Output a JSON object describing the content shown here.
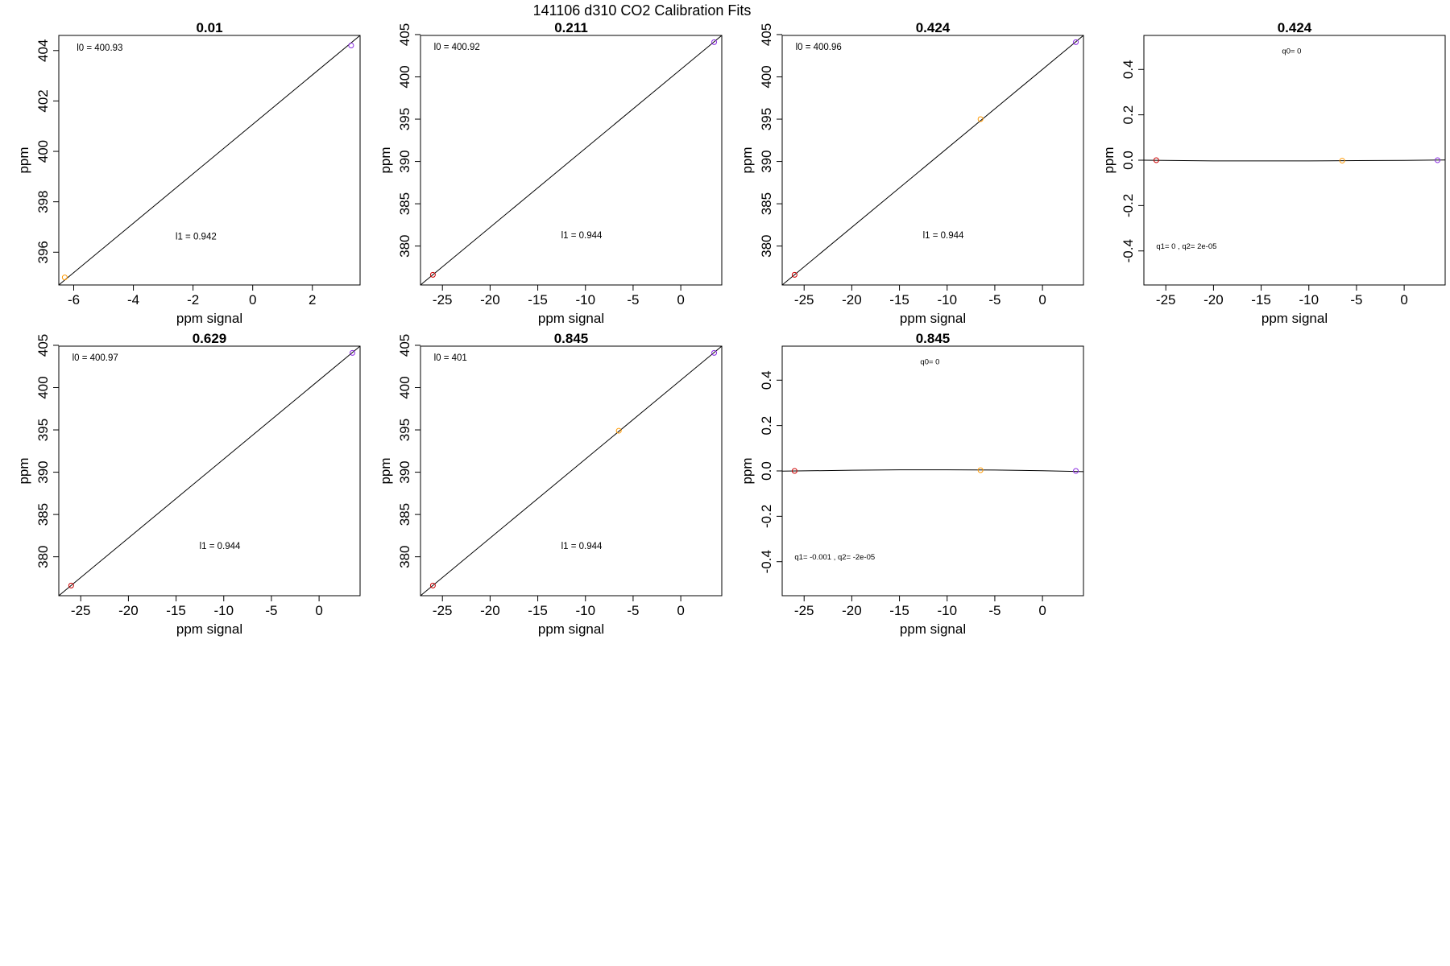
{
  "main_title": "141106   d310   CO2 Calibration Fits",
  "chart_data": [
    {
      "type": "scatter",
      "title": "0.01",
      "xlabel": "ppm signal",
      "ylabel": "ppm",
      "xlim": [
        -6.5,
        3.6
      ],
      "ylim": [
        394.7,
        404.6
      ],
      "xticks": [
        -6,
        -4,
        -2,
        0,
        2
      ],
      "yticks": [
        396,
        398,
        400,
        402,
        404
      ],
      "fit": {
        "type": "linear",
        "x": [
          -6.5,
          3.6
        ],
        "y": [
          394.7,
          404.6
        ]
      },
      "points": [
        {
          "x": -6.3,
          "y": 395.0,
          "color": "#ff9900"
        },
        {
          "x": 3.3,
          "y": 404.2,
          "color": "#8a2be2"
        }
      ],
      "annotations": [
        {
          "text": "l0 =  400.93",
          "x": -5.9,
          "y": 404.0,
          "anchor": "start",
          "size": "normal"
        },
        {
          "text": "l1 =  0.942",
          "x": -1.9,
          "y": 396.5,
          "anchor": "middle",
          "size": "normal"
        }
      ],
      "grid": false
    },
    {
      "type": "scatter",
      "title": "0.211",
      "xlabel": "ppm signal",
      "ylabel": "ppm",
      "xlim": [
        -27.3,
        4.3
      ],
      "ylim": [
        375.4,
        404.9
      ],
      "xticks": [
        -25,
        -20,
        -15,
        -10,
        -5,
        0
      ],
      "yticks": [
        380,
        385,
        390,
        395,
        400,
        405
      ],
      "fit": {
        "type": "linear",
        "x": [
          -27.3,
          4.3
        ],
        "y": [
          375.4,
          404.9
        ]
      },
      "points": [
        {
          "x": -26.0,
          "y": 376.6,
          "color": "#cc0000"
        },
        {
          "x": 3.5,
          "y": 404.1,
          "color": "#8a2be2"
        }
      ],
      "annotations": [
        {
          "text": "l0 =  400.92",
          "x": -25.9,
          "y": 403.2,
          "anchor": "start",
          "size": "normal"
        },
        {
          "text": "l1 =  0.944",
          "x": -10.4,
          "y": 380.9,
          "anchor": "middle",
          "size": "normal"
        }
      ],
      "grid": false
    },
    {
      "type": "scatter",
      "title": "0.424",
      "xlabel": "ppm signal",
      "ylabel": "ppm",
      "xlim": [
        -27.3,
        4.3
      ],
      "ylim": [
        375.4,
        404.9
      ],
      "xticks": [
        -25,
        -20,
        -15,
        -10,
        -5,
        0
      ],
      "yticks": [
        380,
        385,
        390,
        395,
        400,
        405
      ],
      "fit": {
        "type": "linear",
        "x": [
          -27.3,
          4.3
        ],
        "y": [
          375.4,
          404.9
        ]
      },
      "points": [
        {
          "x": -26.0,
          "y": 376.6,
          "color": "#cc0000"
        },
        {
          "x": -6.5,
          "y": 395.0,
          "color": "#ff9900"
        },
        {
          "x": 3.5,
          "y": 404.1,
          "color": "#8a2be2"
        }
      ],
      "annotations": [
        {
          "text": "l0 =  400.96",
          "x": -25.9,
          "y": 403.2,
          "anchor": "start",
          "size": "normal"
        },
        {
          "text": "l1 =  0.944",
          "x": -10.4,
          "y": 380.9,
          "anchor": "middle",
          "size": "normal"
        }
      ],
      "grid": false
    },
    {
      "type": "scatter",
      "title": "0.424",
      "xlabel": "ppm signal",
      "ylabel": "ppm",
      "xlim": [
        -27.3,
        4.3
      ],
      "ylim": [
        -0.55,
        0.55
      ],
      "xticks": [
        -25,
        -20,
        -15,
        -10,
        -5,
        0
      ],
      "yticks": [
        -0.4,
        -0.2,
        0.0,
        0.2,
        0.4
      ],
      "ytick_labels": [
        "-0.4",
        "-0.2",
        "0.0",
        "0.2",
        "0.4"
      ],
      "fit": {
        "type": "curve",
        "x": [
          -27.3,
          -20,
          -15,
          -10,
          -5,
          0,
          4.3
        ],
        "y": [
          0.0,
          -0.003,
          -0.003,
          -0.003,
          -0.002,
          -0.001,
          0.001
        ]
      },
      "points": [
        {
          "x": -26.0,
          "y": 0.0,
          "color": "#cc0000"
        },
        {
          "x": -6.5,
          "y": -0.002,
          "color": "#ff9900"
        },
        {
          "x": 3.5,
          "y": 0.0,
          "color": "#8a2be2"
        }
      ],
      "annotations": [
        {
          "text": "q0= 0",
          "x": -11.8,
          "y": 0.47,
          "anchor": "middle",
          "size": "small"
        },
        {
          "text": "q1= 0  ,  q2= 2e-05",
          "x": -26.0,
          "y": -0.39,
          "anchor": "start",
          "size": "small"
        }
      ],
      "grid": false
    },
    {
      "type": "scatter",
      "title": "0.629",
      "xlabel": "ppm signal",
      "ylabel": "ppm",
      "xlim": [
        -27.3,
        4.3
      ],
      "ylim": [
        375.4,
        404.9
      ],
      "xticks": [
        -25,
        -20,
        -15,
        -10,
        -5,
        0
      ],
      "yticks": [
        380,
        385,
        390,
        395,
        400,
        405
      ],
      "fit": {
        "type": "linear",
        "x": [
          -27.3,
          4.3
        ],
        "y": [
          375.4,
          404.9
        ]
      },
      "points": [
        {
          "x": -26.0,
          "y": 376.6,
          "color": "#cc0000"
        },
        {
          "x": 3.5,
          "y": 404.1,
          "color": "#8a2be2"
        }
      ],
      "annotations": [
        {
          "text": "l0 =  400.97",
          "x": -25.9,
          "y": 403.2,
          "anchor": "start",
          "size": "normal"
        },
        {
          "text": "l1 =  0.944",
          "x": -10.4,
          "y": 380.9,
          "anchor": "middle",
          "size": "normal"
        }
      ],
      "grid": false
    },
    {
      "type": "scatter",
      "title": "0.845",
      "xlabel": "ppm signal",
      "ylabel": "ppm",
      "xlim": [
        -27.3,
        4.3
      ],
      "ylim": [
        375.4,
        404.9
      ],
      "xticks": [
        -25,
        -20,
        -15,
        -10,
        -5,
        0
      ],
      "yticks": [
        380,
        385,
        390,
        395,
        400,
        405
      ],
      "fit": {
        "type": "linear",
        "x": [
          -27.3,
          4.3
        ],
        "y": [
          375.4,
          404.9
        ]
      },
      "points": [
        {
          "x": -26.0,
          "y": 376.6,
          "color": "#cc0000"
        },
        {
          "x": -6.5,
          "y": 394.9,
          "color": "#ff9900"
        },
        {
          "x": 3.5,
          "y": 404.1,
          "color": "#8a2be2"
        }
      ],
      "annotations": [
        {
          "text": "l0 =  401",
          "x": -25.9,
          "y": 403.2,
          "anchor": "start",
          "size": "normal"
        },
        {
          "text": "l1 =  0.944",
          "x": -10.4,
          "y": 380.9,
          "anchor": "middle",
          "size": "normal"
        }
      ],
      "grid": false
    },
    {
      "type": "scatter",
      "title": "0.845",
      "xlabel": "ppm signal",
      "ylabel": "ppm",
      "xlim": [
        -27.3,
        4.3
      ],
      "ylim": [
        -0.55,
        0.55
      ],
      "xticks": [
        -25,
        -20,
        -15,
        -10,
        -5,
        0
      ],
      "yticks": [
        -0.4,
        -0.2,
        0.0,
        0.2,
        0.4
      ],
      "ytick_labels": [
        "-0.4",
        "-0.2",
        "0.0",
        "0.2",
        "0.4"
      ],
      "fit": {
        "type": "curve",
        "x": [
          -27.3,
          -20,
          -15,
          -10,
          -5,
          0,
          4.3
        ],
        "y": [
          -0.001,
          0.003,
          0.005,
          0.005,
          0.004,
          0.001,
          -0.003
        ]
      },
      "points": [
        {
          "x": -26.0,
          "y": 0.0,
          "color": "#cc0000"
        },
        {
          "x": -6.5,
          "y": 0.003,
          "color": "#ff9900"
        },
        {
          "x": 3.5,
          "y": 0.0,
          "color": "#8a2be2"
        }
      ],
      "annotations": [
        {
          "text": "q0= 0",
          "x": -11.8,
          "y": 0.47,
          "anchor": "middle",
          "size": "small"
        },
        {
          "text": "q1= -0.001  ,  q2= -2e-05",
          "x": -26.0,
          "y": -0.39,
          "anchor": "start",
          "size": "small"
        }
      ],
      "grid": false
    }
  ]
}
